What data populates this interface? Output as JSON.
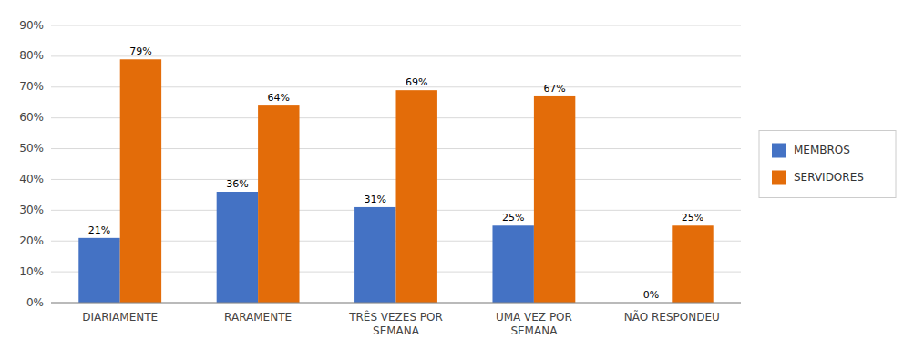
{
  "chart_data": {
    "type": "bar",
    "categories": [
      "DIARIAMENTE",
      "RARAMENTE",
      "TRÊS VEZES POR\nSEMANA",
      "UMA VEZ POR\nSEMANA",
      "NÃO RESPONDEU"
    ],
    "series": [
      {
        "name": "MEMBROS",
        "color": "#4472C4",
        "values": [
          21,
          36,
          31,
          25,
          0
        ],
        "value_labels": [
          "21%",
          "36%",
          "31%",
          "25%",
          "0%"
        ]
      },
      {
        "name": "SERVIDORES",
        "color": "#E36C09",
        "values": [
          79,
          64,
          69,
          67,
          25
        ],
        "value_labels": [
          "79%",
          "64%",
          "69%",
          "67%",
          "25%"
        ]
      }
    ],
    "ylim": [
      0,
      90
    ],
    "yticks": [
      {
        "value": 0,
        "label": "0%"
      },
      {
        "value": 10,
        "label": "10%"
      },
      {
        "value": 20,
        "label": "20%"
      },
      {
        "value": 30,
        "label": "30%"
      },
      {
        "value": 40,
        "label": "40%"
      },
      {
        "value": 50,
        "label": "50%"
      },
      {
        "value": 60,
        "label": "60%"
      },
      {
        "value": 70,
        "label": "70%"
      },
      {
        "value": 80,
        "label": "80%"
      },
      {
        "value": 90,
        "label": "90%"
      }
    ],
    "grid": true,
    "legend": "right",
    "data_labels": true
  }
}
